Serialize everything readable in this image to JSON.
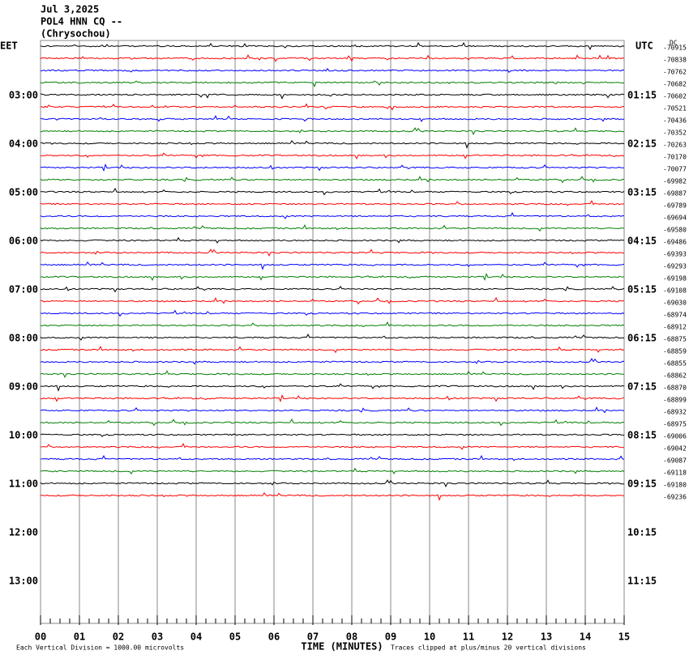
{
  "chart_data": {
    "type": "helicorder",
    "header": [
      "Jul 3,2025",
      "POL4 HNN CQ --",
      "(Chrysochou)"
    ],
    "left_label": "EET",
    "right_label": "UTC",
    "dc_label": "DC",
    "left_times": [
      "03:00",
      "04:00",
      "05:00",
      "06:00",
      "07:00",
      "08:00",
      "09:00",
      "10:00",
      "11:00",
      "12:00",
      "13:00"
    ],
    "right_times": [
      "01:15",
      "02:15",
      "03:15",
      "04:15",
      "05:15",
      "06:15",
      "07:15",
      "08:15",
      "09:15",
      "10:15",
      "11:15"
    ],
    "trace_offsets": [
      -70915,
      -70838,
      -70762,
      -70682,
      -70602,
      -70521,
      -70436,
      -70352,
      -70263,
      -70170,
      -70077,
      -69982,
      -69887,
      -69789,
      -69694,
      -69580,
      -69486,
      -69393,
      -69293,
      -69198,
      -69108,
      -69030,
      -68974,
      -68912,
      -68875,
      -68859,
      -68855,
      -68862,
      -68870,
      -68899,
      -68932,
      -68975,
      -69006,
      -69042,
      -69087,
      -69118,
      -69180,
      -69236
    ],
    "trace_colors": [
      "#000000",
      "#ff0000",
      "#0000ff",
      "#008000"
    ],
    "xlabel": "TIME (MINUTES)",
    "xlim": [
      0,
      15
    ],
    "xticks": [
      {
        "value": 0,
        "label": "00"
      },
      {
        "value": 1,
        "label": "01"
      },
      {
        "value": 2,
        "label": "02"
      },
      {
        "value": 3,
        "label": "03"
      },
      {
        "value": 4,
        "label": "04"
      },
      {
        "value": 5,
        "label": "05"
      },
      {
        "value": 6,
        "label": "06"
      },
      {
        "value": 7,
        "label": "07"
      },
      {
        "value": 8,
        "label": "08"
      },
      {
        "value": 9,
        "label": "09"
      },
      10,
      11,
      12,
      13,
      14,
      15
    ],
    "footer_left": "Each Vertical Division = 1000.00 microvolts",
    "footer_right": "Traces clipped at plus/minus 20 vertical divisions"
  }
}
